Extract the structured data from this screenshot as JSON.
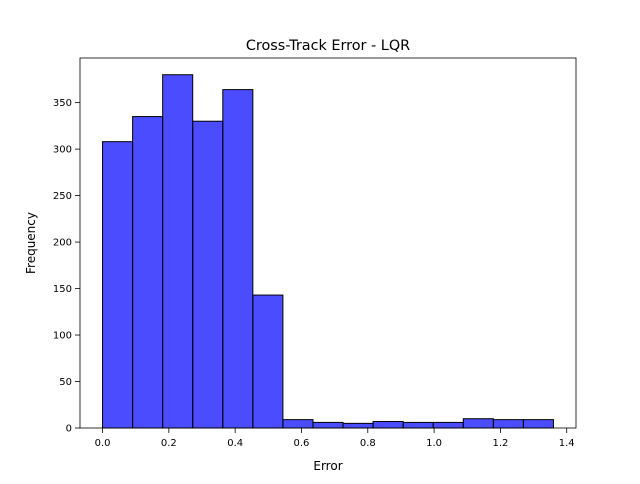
{
  "chart_data": {
    "type": "bar",
    "title": "Cross-Track Error - LQR",
    "xlabel": "Error",
    "ylabel": "Frequency",
    "xlim": [
      -0.068,
      1.428
    ],
    "ylim": [
      0,
      398
    ],
    "xticks": [
      0.0,
      0.2,
      0.4,
      0.6,
      0.8,
      1.0,
      1.2,
      1.4
    ],
    "xtick_labels": [
      "0.0",
      "0.2",
      "0.4",
      "0.6",
      "0.8",
      "1.0",
      "1.2",
      "1.4"
    ],
    "yticks": [
      0,
      50,
      100,
      150,
      200,
      250,
      300,
      350
    ],
    "ytick_labels": [
      "0",
      "50",
      "100",
      "150",
      "200",
      "250",
      "300",
      "350"
    ],
    "bin_edges": [
      0.0,
      0.0907,
      0.1813,
      0.272,
      0.3627,
      0.4533,
      0.544,
      0.6347,
      0.7253,
      0.816,
      0.9067,
      0.9973,
      1.088,
      1.1787,
      1.2693,
      1.36
    ],
    "values": [
      308,
      335,
      380,
      330,
      364,
      143,
      9,
      6,
      5,
      7,
      6,
      6,
      10,
      9,
      9
    ],
    "grid": false,
    "legend": "none",
    "bar_color": "#0000ff",
    "bar_opacity": 0.7,
    "edge_color": "#000000"
  }
}
